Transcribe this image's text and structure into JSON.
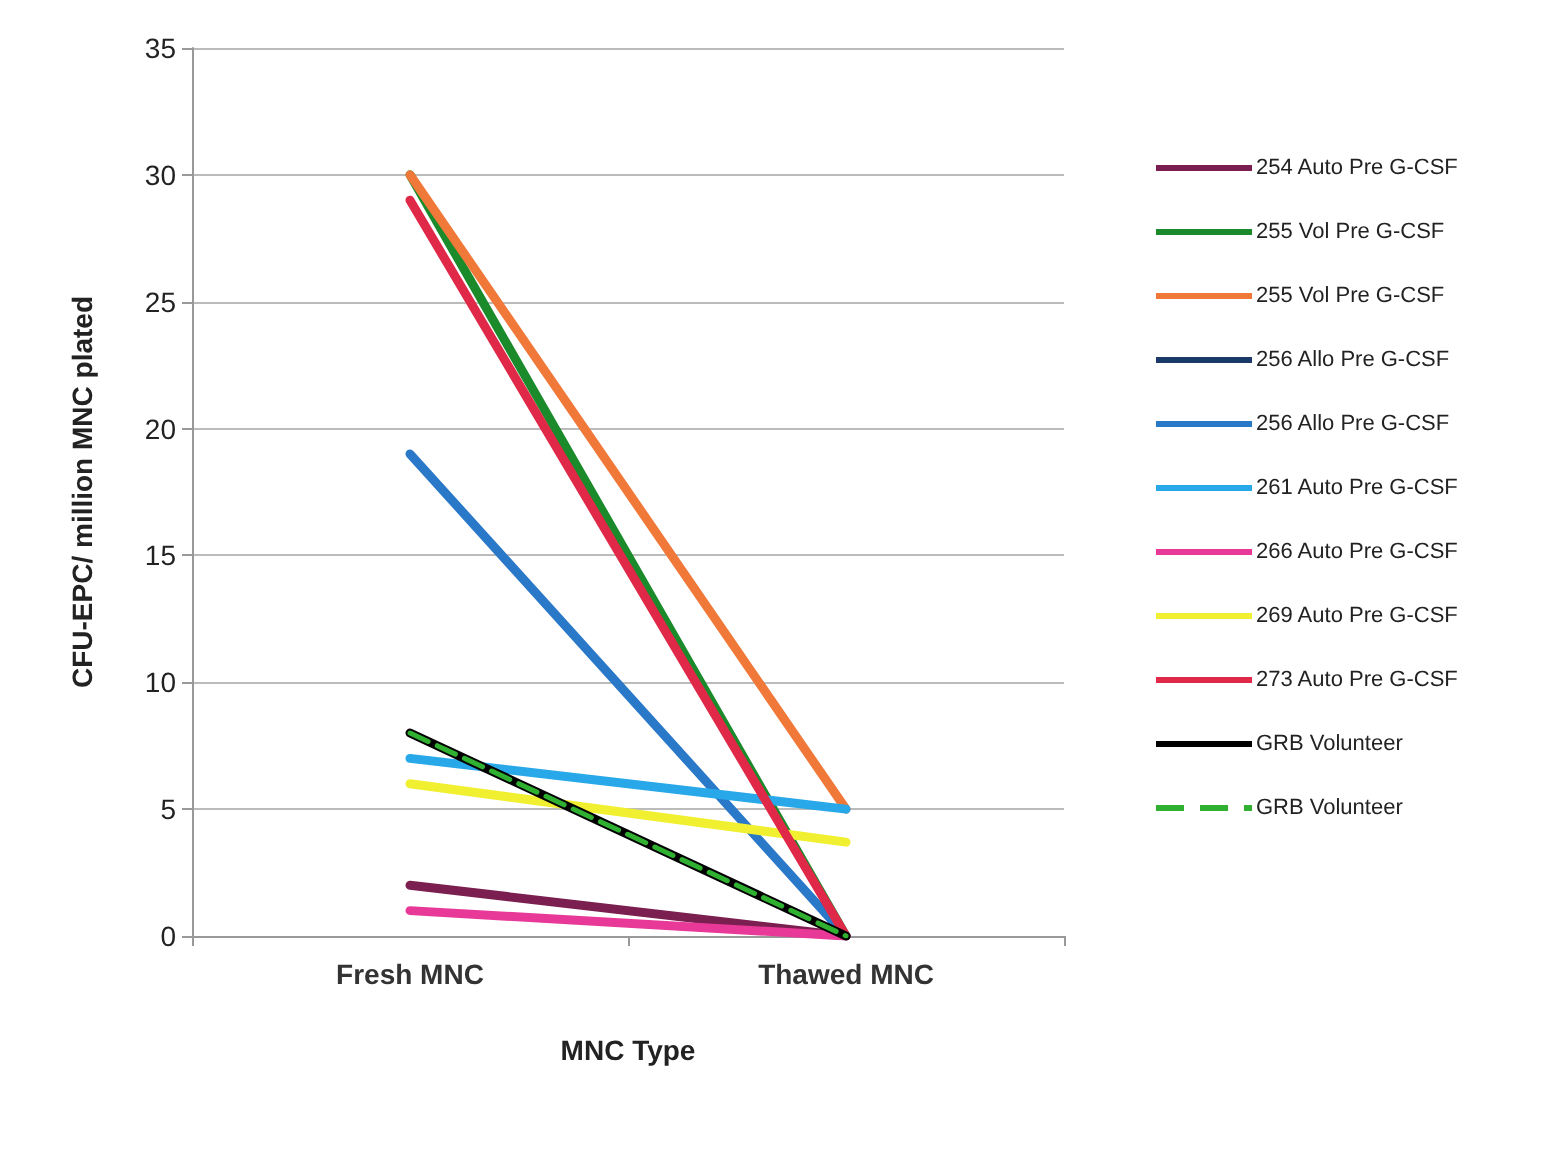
{
  "chart_data": {
    "type": "line",
    "xlabel": "MNC Type",
    "ylabel": "CFU-EPC/ million MNC plated",
    "categories": [
      "Fresh MNC",
      "Thawed MNC"
    ],
    "ylim": [
      0,
      35
    ],
    "yticks": [
      0,
      5,
      10,
      15,
      20,
      25,
      30,
      35
    ],
    "grid": "y",
    "legend": "right",
    "marker": "none",
    "line_style": "solid",
    "series": [
      {
        "name": "254 Auto Pre G-CSF",
        "color": "#7a1f4f",
        "values": [
          2,
          0
        ]
      },
      {
        "name": "255 Vol Pre G-CSF",
        "color": "#1a8a2a",
        "values": [
          30,
          0
        ]
      },
      {
        "name": "255 Vol Pre G-CSF",
        "color": "#f07838",
        "values": [
          30,
          5
        ]
      },
      {
        "name": "256 Allo Pre G-CSF",
        "color": "#1a3a6a",
        "values": [
          null,
          null
        ]
      },
      {
        "name": "256 Allo Pre G-CSF",
        "color": "#2a78c8",
        "values": [
          19,
          0
        ]
      },
      {
        "name": "261 Auto Pre G-CSF",
        "color": "#28a8e8",
        "values": [
          7,
          5
        ]
      },
      {
        "name": "266 Auto Pre G-CSF",
        "color": "#e83898",
        "values": [
          1,
          0
        ]
      },
      {
        "name": "269 Auto Pre G-CSF",
        "color": "#f0f030",
        "values": [
          6,
          3.7
        ]
      },
      {
        "name": "273 Auto Pre G-CSF",
        "color": "#e02848",
        "values": [
          29,
          0
        ]
      },
      {
        "name": "GRB Volunteer",
        "color": "#000000",
        "values": [
          8,
          0
        ]
      },
      {
        "name": "GRB Volunteer",
        "color": "#30b030",
        "values": [
          8,
          0
        ],
        "line_style": "dashed"
      }
    ]
  }
}
